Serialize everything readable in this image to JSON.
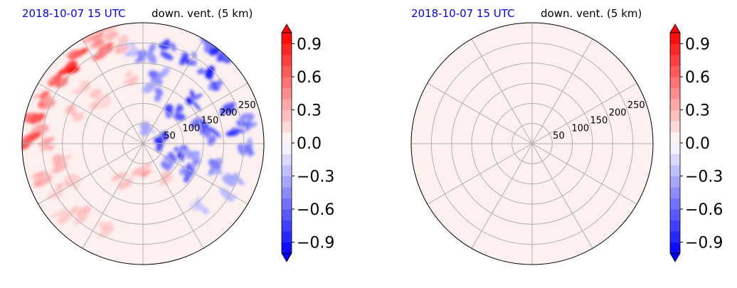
{
  "figure": {
    "panels": [
      {
        "time_label": "2018-10-07 15 UTC",
        "variable_label": "down. vent. (5 km)",
        "field": "noisy",
        "colorbar_ticks": [
          "0.9",
          "0.6",
          "0.3",
          "0.0",
          "−0.3",
          "−0.6",
          "−0.9"
        ]
      },
      {
        "time_label": "2018-10-07 15 UTC",
        "variable_label": "down. vent. (5 km)",
        "field": "uniform",
        "colorbar_ticks": [
          "0.9",
          "0.6",
          "0.3",
          "0.0",
          "−0.3",
          "−0.6",
          "−0.9"
        ]
      }
    ]
  },
  "chart_data": [
    {
      "type": "heatmap",
      "projection": "polar",
      "title_left": "2018-10-07 15 UTC",
      "title_right": "down. vent. (5 km)",
      "r_ticks": [
        50,
        100,
        150,
        200,
        250
      ],
      "r_max": 300,
      "theta_gridlines_deg": [
        0,
        30,
        60,
        90,
        120,
        150,
        180,
        210,
        240,
        270,
        300,
        330
      ],
      "colorbar": {
        "colormap": "bwr",
        "range": [
          -1.0,
          1.0
        ],
        "ticks": [
          0.9,
          0.6,
          0.3,
          0.0,
          -0.3,
          -0.6,
          -0.9
        ],
        "extend": "both"
      },
      "description_values": "scattered positive (red) patches in west/north-west, negative (blue) patches in north-east and east"
    },
    {
      "type": "heatmap",
      "projection": "polar",
      "title_left": "2018-10-07 15 UTC",
      "title_right": "down. vent. (5 km)",
      "r_ticks": [
        50,
        100,
        150,
        200,
        250
      ],
      "r_max": 300,
      "theta_gridlines_deg": [
        0,
        30,
        60,
        90,
        120,
        150,
        180,
        210,
        240,
        270,
        300,
        330
      ],
      "colorbar": {
        "colormap": "bwr",
        "range": [
          -1.0,
          1.0
        ],
        "ticks": [
          0.9,
          0.6,
          0.3,
          0.0,
          -0.3,
          -0.6,
          -0.9
        ],
        "extend": "both"
      },
      "uniform_value": 0.05
    }
  ],
  "colors": {
    "time_label": "#0000ff",
    "neg": "#0000ff",
    "pos": "#ff0000",
    "grid": "#b0b0b0"
  }
}
